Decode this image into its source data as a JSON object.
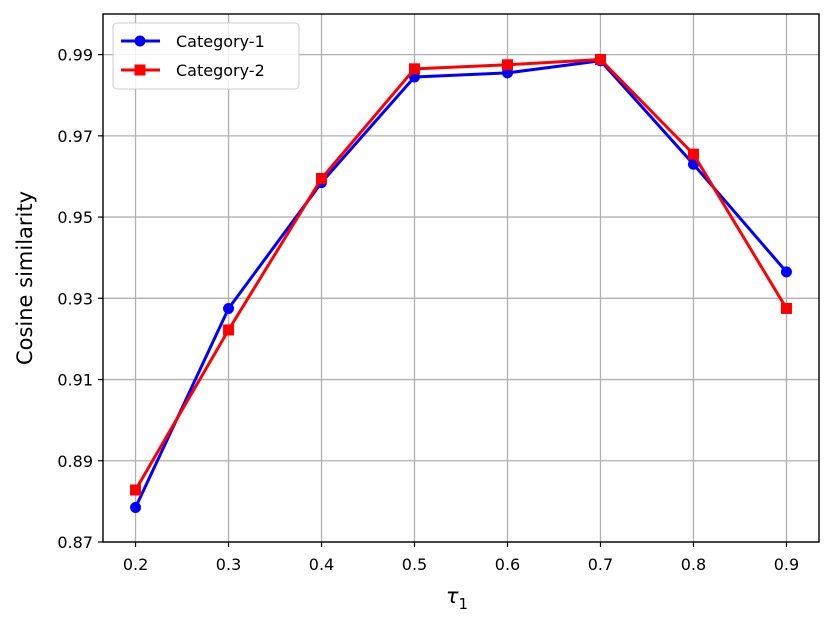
{
  "chart_data": {
    "type": "line",
    "title": "",
    "xlabel": "τ",
    "xlabel_subscript": "1",
    "ylabel": "Cosine similarity",
    "x": [
      0.2,
      0.3,
      0.4,
      0.5,
      0.6,
      0.7,
      0.8,
      0.9
    ],
    "x_tick_labels": [
      "0.2",
      "0.3",
      "0.4",
      "0.5",
      "0.6",
      "0.7",
      "0.8",
      "0.9"
    ],
    "y_tick_values": [
      0.87,
      0.89,
      0.91,
      0.93,
      0.95,
      0.97,
      0.99
    ],
    "y_tick_labels": [
      "0.87",
      "0.89",
      "0.91",
      "0.93",
      "0.95",
      "0.97",
      "0.99"
    ],
    "xlim": [
      0.165,
      0.935
    ],
    "ylim": [
      0.87,
      1.0
    ],
    "grid": true,
    "legend_position": "top-left",
    "series": [
      {
        "name": "Category-1",
        "color": "#0000ff",
        "marker": "circle",
        "values": [
          0.8785,
          0.9275,
          0.9585,
          0.9845,
          0.9855,
          0.9885,
          0.963,
          0.9365
        ]
      },
      {
        "name": "Category-2",
        "color": "#ff0000",
        "marker": "square",
        "values": [
          0.8828,
          0.9222,
          0.9595,
          0.9865,
          0.9875,
          0.9888,
          0.9655,
          0.9275
        ]
      }
    ]
  }
}
